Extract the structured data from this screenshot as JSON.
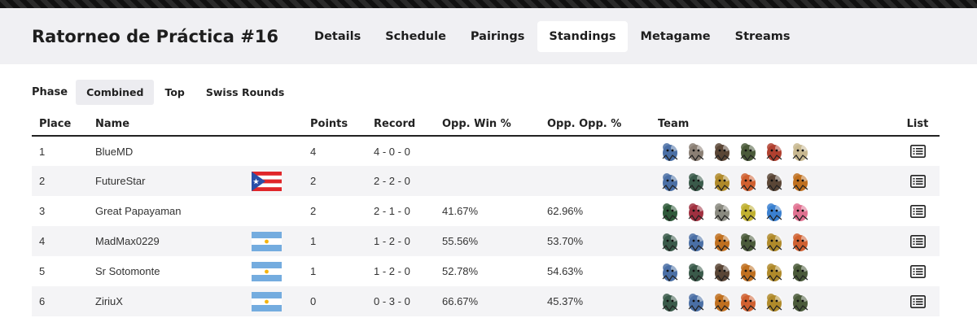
{
  "header": {
    "title": "Ratorneo de Práctica #16",
    "tabs": [
      {
        "label": "Details",
        "active": false
      },
      {
        "label": "Schedule",
        "active": false
      },
      {
        "label": "Pairings",
        "active": false
      },
      {
        "label": "Standings",
        "active": true
      },
      {
        "label": "Metagame",
        "active": false
      },
      {
        "label": "Streams",
        "active": false
      }
    ]
  },
  "phase": {
    "label": "Phase",
    "options": [
      {
        "label": "Combined",
        "active": true
      },
      {
        "label": "Top",
        "active": false
      },
      {
        "label": "Swiss Rounds",
        "active": false
      }
    ]
  },
  "table": {
    "columns": {
      "place": "Place",
      "name": "Name",
      "points": "Points",
      "record": "Record",
      "opp_win": "Opp. Win %",
      "opp_opp": "Opp. Opp. %",
      "team": "Team",
      "list": "List"
    },
    "rows": [
      {
        "place": "1",
        "name": "BlueMD",
        "flag": "",
        "points": "4",
        "record": "4 - 0 - 0",
        "opp_win": "",
        "opp_opp": "",
        "team": [
          {
            "icon": "pokemon-sprite-icon",
            "color": "#4a6fa5"
          },
          {
            "icon": "pokemon-sprite-icon",
            "color": "#8a7f74"
          },
          {
            "icon": "pokemon-sprite-icon",
            "color": "#5a4636"
          },
          {
            "icon": "pokemon-sprite-icon",
            "color": "#4a5a3a"
          },
          {
            "icon": "pokemon-sprite-icon",
            "color": "#b0402f"
          },
          {
            "icon": "pokemon-sprite-icon",
            "color": "#c8b890"
          }
        ]
      },
      {
        "place": "2",
        "name": "FutureStar",
        "flag": "puerto-rico",
        "points": "2",
        "record": "2 - 2 - 0",
        "opp_win": "",
        "opp_opp": "",
        "team": [
          {
            "icon": "pokemon-sprite-icon",
            "color": "#4a6fa5"
          },
          {
            "icon": "pokemon-sprite-icon",
            "color": "#3a5a4a"
          },
          {
            "icon": "pokemon-sprite-icon",
            "color": "#b08a2a"
          },
          {
            "icon": "pokemon-sprite-icon",
            "color": "#d06030"
          },
          {
            "icon": "pokemon-sprite-icon",
            "color": "#5a4636"
          },
          {
            "icon": "pokemon-sprite-icon",
            "color": "#c07020"
          }
        ]
      },
      {
        "place": "3",
        "name": "Great Papayaman",
        "flag": "",
        "points": "2",
        "record": "2 - 1 - 0",
        "opp_win": "41.67%",
        "opp_opp": "62.96%",
        "team": [
          {
            "icon": "pokemon-sprite-icon",
            "color": "#2f5a3a"
          },
          {
            "icon": "pokemon-sprite-icon",
            "color": "#a03040"
          },
          {
            "icon": "pokemon-sprite-icon",
            "color": "#8a8a80"
          },
          {
            "icon": "pokemon-sprite-icon",
            "color": "#c0b030"
          },
          {
            "icon": "pokemon-sprite-icon",
            "color": "#3a80d0"
          },
          {
            "icon": "pokemon-sprite-icon",
            "color": "#e07090"
          }
        ]
      },
      {
        "place": "4",
        "name": "MadMax0229",
        "flag": "argentina",
        "points": "1",
        "record": "1 - 2 - 0",
        "opp_win": "55.56%",
        "opp_opp": "53.70%",
        "team": [
          {
            "icon": "pokemon-sprite-icon",
            "color": "#3a5a4a"
          },
          {
            "icon": "pokemon-sprite-icon",
            "color": "#4a6fa5"
          },
          {
            "icon": "pokemon-sprite-icon",
            "color": "#c07020"
          },
          {
            "icon": "pokemon-sprite-icon",
            "color": "#4a5a3a"
          },
          {
            "icon": "pokemon-sprite-icon",
            "color": "#b08a2a"
          },
          {
            "icon": "pokemon-sprite-icon",
            "color": "#d06030"
          }
        ]
      },
      {
        "place": "5",
        "name": "Sr Sotomonte",
        "flag": "argentina",
        "points": "1",
        "record": "1 - 2 - 0",
        "opp_win": "52.78%",
        "opp_opp": "54.63%",
        "team": [
          {
            "icon": "pokemon-sprite-icon",
            "color": "#4a6fa5"
          },
          {
            "icon": "pokemon-sprite-icon",
            "color": "#3a5a4a"
          },
          {
            "icon": "pokemon-sprite-icon",
            "color": "#5a4636"
          },
          {
            "icon": "pokemon-sprite-icon",
            "color": "#c07020"
          },
          {
            "icon": "pokemon-sprite-icon",
            "color": "#b08a2a"
          },
          {
            "icon": "pokemon-sprite-icon",
            "color": "#4a5a3a"
          }
        ]
      },
      {
        "place": "6",
        "name": "ZiriuX",
        "flag": "argentina",
        "points": "0",
        "record": "0 - 3 - 0",
        "opp_win": "66.67%",
        "opp_opp": "45.37%",
        "team": [
          {
            "icon": "pokemon-sprite-icon",
            "color": "#3a5a4a"
          },
          {
            "icon": "pokemon-sprite-icon",
            "color": "#4a6fa5"
          },
          {
            "icon": "pokemon-sprite-icon",
            "color": "#c07020"
          },
          {
            "icon": "pokemon-sprite-icon",
            "color": "#d06030"
          },
          {
            "icon": "pokemon-sprite-icon",
            "color": "#b08a2a"
          },
          {
            "icon": "pokemon-sprite-icon",
            "color": "#4a5a3a"
          }
        ]
      }
    ]
  }
}
